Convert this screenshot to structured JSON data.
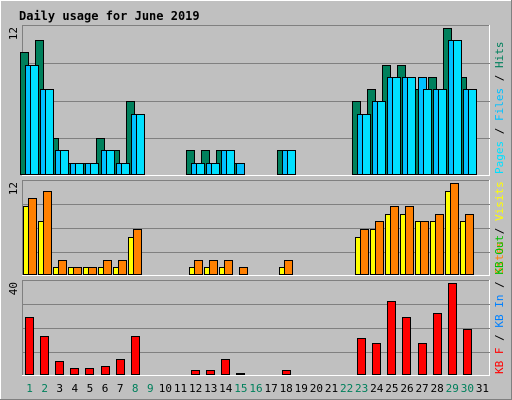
{
  "chart_data": {
    "type": "bar",
    "title": "Daily usage for June 2019",
    "categories": [
      "1",
      "2",
      "3",
      "4",
      "5",
      "6",
      "7",
      "8",
      "9",
      "10",
      "11",
      "12",
      "13",
      "14",
      "15",
      "16",
      "17",
      "18",
      "19",
      "20",
      "21",
      "22",
      "23",
      "24",
      "25",
      "26",
      "27",
      "28",
      "29",
      "30",
      "31"
    ],
    "weekend_days": [
      "1",
      "2",
      "8",
      "9",
      "15",
      "16",
      "22",
      "23",
      "29",
      "30"
    ],
    "colors": {
      "hits": "#00805c",
      "files": "#00c0ff",
      "pages": "#00e0ff",
      "visits": "#ffff00",
      "sites": "#ff8000",
      "kb_f": "#ff0000",
      "title": "#0000ff",
      "weekend_tick": "#00805c",
      "weekday_tick": "#000000"
    },
    "panels": [
      {
        "name": "hits-files-pages",
        "scale_label": "12",
        "ylim": [
          0,
          12
        ],
        "label_parts": [
          {
            "text": "Pages",
            "color": "#00e0ff"
          },
          {
            "text": " / ",
            "color": "#000000"
          },
          {
            "text": "Files",
            "color": "#00c0ff"
          },
          {
            "text": " / ",
            "color": "#000000"
          },
          {
            "text": "Hits",
            "color": "#00805c"
          }
        ],
        "series": [
          {
            "name": "Hits",
            "color": "#00805c",
            "values": [
              10,
              11,
              3,
              1,
              1,
              3,
              2,
              6,
              0,
              0,
              0,
              2,
              2,
              2,
              1,
              0,
              0,
              2,
              0,
              0,
              0,
              0,
              6,
              7,
              9,
              9,
              7,
              8,
              12,
              8,
              0
            ]
          },
          {
            "name": "Files",
            "color": "#00c0ff",
            "values": [
              9,
              7,
              2,
              1,
              1,
              2,
              1,
              5,
              0,
              0,
              0,
              1,
              1,
              2,
              1,
              0,
              0,
              2,
              0,
              0,
              0,
              0,
              5,
              6,
              8,
              8,
              8,
              7,
              11,
              7,
              0
            ]
          },
          {
            "name": "Pages",
            "color": "#00e0ff",
            "values": [
              9,
              7,
              2,
              1,
              1,
              2,
              1,
              5,
              0,
              0,
              0,
              1,
              1,
              2,
              0,
              0,
              0,
              2,
              0,
              0,
              0,
              0,
              5,
              6,
              8,
              8,
              7,
              7,
              11,
              7,
              0
            ]
          }
        ]
      },
      {
        "name": "visits-sites",
        "scale_label": "12",
        "ylim": [
          0,
          12
        ],
        "label_parts": [
          {
            "text": "Sites",
            "color": "#ff8000"
          },
          {
            "text": " / ",
            "color": "#000000"
          },
          {
            "text": "Visits",
            "color": "#ffff00"
          }
        ],
        "series": [
          {
            "name": "Visits",
            "color": "#ffff00",
            "values": [
              9,
              7,
              1,
              1,
              1,
              1,
              1,
              5,
              0,
              0,
              0,
              1,
              1,
              1,
              0,
              0,
              0,
              1,
              0,
              0,
              0,
              0,
              5,
              6,
              8,
              8,
              7,
              7,
              11,
              7,
              0
            ]
          },
          {
            "name": "Sites",
            "color": "#ff8000",
            "values": [
              10,
              11,
              2,
              1,
              1,
              2,
              2,
              6,
              0,
              0,
              0,
              2,
              2,
              2,
              1,
              0,
              0,
              2,
              0,
              0,
              0,
              0,
              6,
              7,
              9,
              9,
              7,
              8,
              12,
              8,
              0
            ]
          }
        ]
      },
      {
        "name": "kb",
        "scale_label": "40",
        "ylim": [
          0,
          40
        ],
        "label_parts": [
          {
            "text": "KB F",
            "color": "#ff0000"
          },
          {
            "text": " / ",
            "color": "#000000"
          },
          {
            "text": "KB In",
            "color": "#0080ff"
          },
          {
            "text": " / ",
            "color": "#000000"
          },
          {
            "text": "KB Out",
            "color": "#00c000"
          }
        ],
        "series": [
          {
            "name": "KB F",
            "color": "#ff0000",
            "values": [
              25,
              17,
              6,
              3,
              3,
              4,
              7,
              17,
              0,
              0,
              0,
              2,
              2,
              7,
              1,
              0,
              0,
              2,
              0,
              0,
              0,
              0,
              16,
              14,
              32,
              25,
              14,
              27,
              40,
              20,
              0
            ]
          }
        ]
      }
    ]
  }
}
